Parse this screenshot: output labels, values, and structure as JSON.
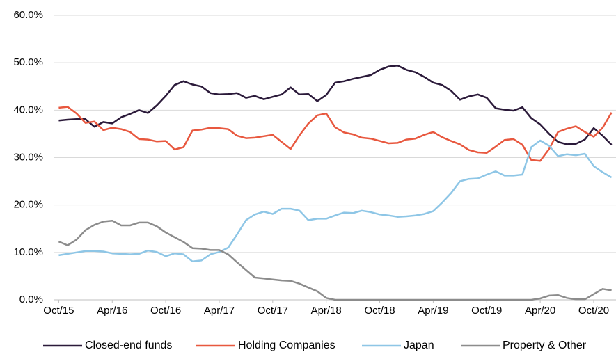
{
  "chart_data": {
    "type": "line",
    "categories": [
      "Oct/15",
      null,
      null,
      null,
      null,
      null,
      "Apr/16",
      null,
      null,
      null,
      null,
      null,
      "Oct/16",
      null,
      null,
      null,
      null,
      null,
      "Apr/17",
      null,
      null,
      null,
      null,
      null,
      "Oct/17",
      null,
      null,
      null,
      null,
      null,
      "Apr/18",
      null,
      null,
      null,
      null,
      null,
      "Oct/18",
      null,
      null,
      null,
      null,
      null,
      "Apr/19",
      null,
      null,
      null,
      null,
      null,
      "Oct/19",
      null,
      null,
      null,
      null,
      null,
      "Apr/20",
      null,
      null,
      null,
      null,
      null,
      "Oct/20",
      null,
      null
    ],
    "series": [
      {
        "name": "Closed-end funds",
        "color": "#2b1a3a",
        "values": [
          37.8,
          38.0,
          38.1,
          38.1,
          36.5,
          37.5,
          37.2,
          38.5,
          39.2,
          40.0,
          39.4,
          41.0,
          43.0,
          45.3,
          46.1,
          45.4,
          45.0,
          43.6,
          43.3,
          43.4,
          43.6,
          42.6,
          43.0,
          42.3,
          42.8,
          43.3,
          44.8,
          43.3,
          43.4,
          41.9,
          43.2,
          45.8,
          46.1,
          46.6,
          47.0,
          47.4,
          48.5,
          49.2,
          49.4,
          48.5,
          48.0,
          47.0,
          45.8,
          45.3,
          44.1,
          42.2,
          42.9,
          43.3,
          42.6,
          40.4,
          40.1,
          39.9,
          40.6,
          38.3,
          37.0,
          35.0,
          33.3,
          32.8,
          32.9,
          33.8,
          36.2,
          34.6,
          32.7
        ]
      },
      {
        "name": "Holding Companies",
        "color": "#e8583f",
        "values": [
          40.5,
          40.7,
          39.3,
          37.3,
          37.6,
          35.8,
          36.3,
          36.0,
          35.4,
          33.9,
          33.8,
          33.4,
          33.5,
          31.7,
          32.2,
          35.7,
          35.9,
          36.3,
          36.2,
          36.0,
          34.6,
          34.1,
          34.2,
          34.5,
          34.8,
          33.3,
          31.8,
          34.7,
          37.2,
          38.9,
          39.3,
          36.4,
          35.3,
          34.9,
          34.2,
          34.0,
          33.5,
          33.0,
          33.1,
          33.8,
          34.0,
          34.8,
          35.4,
          34.3,
          33.5,
          32.8,
          31.6,
          31.1,
          31.0,
          32.3,
          33.7,
          33.9,
          32.7,
          29.5,
          29.3,
          31.8,
          35.4,
          36.1,
          36.6,
          35.4,
          34.4,
          36.3,
          39.5
        ]
      },
      {
        "name": "Japan",
        "color": "#8ec6e6",
        "values": [
          9.4,
          9.7,
          10.0,
          10.3,
          10.3,
          10.2,
          9.8,
          9.7,
          9.6,
          9.7,
          10.4,
          10.1,
          9.2,
          9.8,
          9.6,
          8.1,
          8.3,
          9.6,
          10.1,
          11.0,
          13.8,
          16.8,
          18.0,
          18.6,
          18.1,
          19.2,
          19.2,
          18.8,
          16.8,
          17.1,
          17.1,
          17.8,
          18.4,
          18.3,
          18.8,
          18.5,
          18.0,
          17.8,
          17.5,
          17.6,
          17.8,
          18.1,
          18.7,
          20.5,
          22.5,
          25.0,
          25.5,
          25.6,
          26.4,
          27.1,
          26.2,
          26.2,
          26.4,
          32.2,
          33.6,
          32.5,
          30.3,
          30.7,
          30.5,
          30.8,
          28.2,
          26.9,
          25.8
        ]
      },
      {
        "name": "Property & Other",
        "color": "#8c8c8c",
        "values": [
          12.3,
          11.5,
          12.7,
          14.7,
          15.8,
          16.5,
          16.7,
          15.7,
          15.7,
          16.3,
          16.3,
          15.5,
          14.2,
          13.2,
          12.2,
          10.9,
          10.8,
          10.5,
          10.5,
          9.6,
          7.9,
          6.3,
          4.7,
          4.5,
          4.3,
          4.1,
          4.0,
          3.4,
          2.6,
          1.8,
          0.4,
          0,
          0,
          0,
          0,
          0,
          0,
          0,
          0,
          0,
          0,
          0,
          0,
          0,
          0,
          0,
          0,
          0,
          0,
          0,
          0,
          0,
          0,
          0,
          0.3,
          0.9,
          1.0,
          0.4,
          0.1,
          0.1,
          1.2,
          2.3,
          2.0
        ]
      }
    ],
    "ylim": [
      0,
      60
    ],
    "yticks": [
      {
        "value": 0,
        "label": "0.0%"
      },
      {
        "value": 10,
        "label": "10.0%"
      },
      {
        "value": 20,
        "label": "20.0%"
      },
      {
        "value": 30,
        "label": "30.0%"
      },
      {
        "value": 40,
        "label": "40.0%"
      },
      {
        "value": 50,
        "label": "50.0%"
      },
      {
        "value": 60,
        "label": "60.0%"
      }
    ],
    "grid": true,
    "legend": "bottom"
  }
}
